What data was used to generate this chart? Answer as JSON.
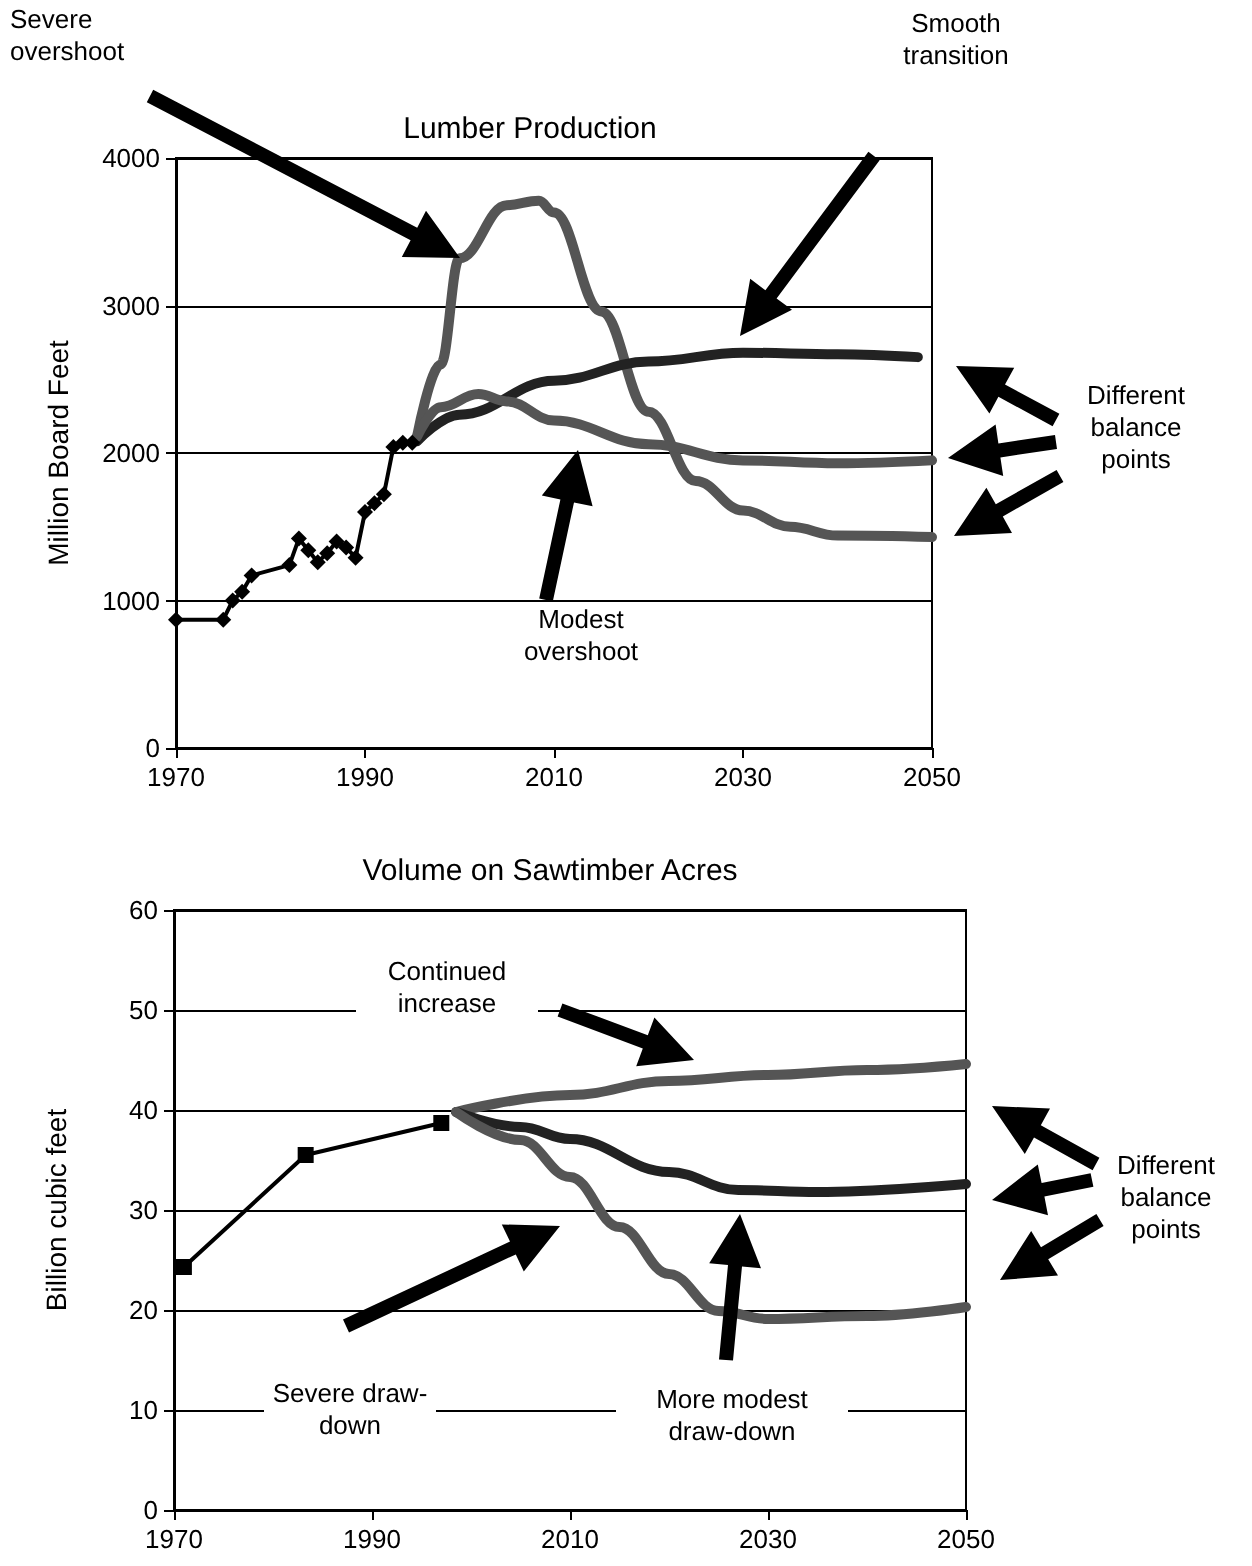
{
  "chart_data": [
    {
      "type": "line",
      "title": "Lumber Production",
      "ylabel": "Million Board Feet",
      "xlim": [
        1970,
        2050
      ],
      "xticks": [
        1970,
        1990,
        2010,
        2030,
        2050
      ],
      "ylim": [
        0,
        4000
      ],
      "yticks": [
        0,
        1000,
        2000,
        3000,
        4000
      ],
      "grid": "y",
      "line_style": "solid",
      "annotations": [
        "Severe overshoot",
        "Smooth transition",
        "Modest overshoot",
        "Different balance points"
      ],
      "series": [
        {
          "color": "#000000",
          "marker": "diamond",
          "x": [
            1970,
            1975,
            1976,
            1977,
            1978,
            1982,
            1983,
            1984,
            1985,
            1986,
            1987,
            1988,
            1989,
            1990,
            1991,
            1992,
            1993,
            1994,
            1995
          ],
          "values": [
            870,
            870,
            1000,
            1060,
            1170,
            1240,
            1420,
            1340,
            1260,
            1320,
            1400,
            1360,
            1290,
            1600,
            1660,
            1720,
            2040,
            2070,
            2070
          ]
        },
        {
          "color": "#555555",
          "marker": "none",
          "x": [
            1995.5,
            1998,
            2000,
            2005,
            2008.4,
            2010,
            2015,
            2020,
            2025,
            2030,
            2035,
            2040,
            2050
          ],
          "values": [
            2110,
            2600,
            3320,
            3680,
            3710,
            3630,
            2960,
            2280,
            1810,
            1610,
            1500,
            1440,
            1430
          ]
        },
        {
          "color": "#222222",
          "marker": "none",
          "x": [
            1995.5,
            2000,
            2010,
            2020,
            2030,
            2040,
            2048.5
          ],
          "values": [
            2080,
            2260,
            2490,
            2620,
            2680,
            2670,
            2650
          ]
        },
        {
          "color": "#555555",
          "marker": "none",
          "x": [
            1995.5,
            1998,
            2002,
            2005,
            2010,
            2020,
            2030,
            2040,
            2050
          ],
          "values": [
            2110,
            2310,
            2400,
            2350,
            2220,
            2060,
            1950,
            1930,
            1950
          ]
        }
      ]
    },
    {
      "type": "line",
      "title": "Volume on Sawtimber Acres",
      "ylabel": "Billion cubic feet",
      "xlim": [
        1970,
        2050
      ],
      "xticks": [
        1970,
        1990,
        2010,
        2030,
        2050
      ],
      "ylim": [
        0,
        60
      ],
      "yticks": [
        0,
        10,
        20,
        30,
        40,
        50,
        60
      ],
      "grid": "y",
      "line_style": "solid",
      "annotations": [
        "Continued increase",
        "Severe draw-down",
        "More modest draw-down",
        "Different balance points"
      ],
      "series": [
        {
          "color": "#000000",
          "marker": "square",
          "x": [
            1971,
            1983.3,
            1997
          ],
          "values": [
            24.3,
            35.5,
            38.7
          ]
        },
        {
          "color": "#555555",
          "marker": "none",
          "x": [
            1998.5,
            2010,
            2020,
            2030,
            2040,
            2050
          ],
          "values": [
            39.8,
            41.5,
            42.9,
            43.5,
            44.0,
            44.6
          ]
        },
        {
          "color": "#222222",
          "marker": "none",
          "x": [
            1998.5,
            2005,
            2010,
            2020,
            2027,
            2035,
            2050
          ],
          "values": [
            39.8,
            38.3,
            37.1,
            33.8,
            32.0,
            31.8,
            32.6
          ]
        },
        {
          "color": "#555555",
          "marker": "none",
          "x": [
            1998.5,
            2005,
            2010,
            2015,
            2020,
            2025,
            2030,
            2040,
            2050
          ],
          "values": [
            39.8,
            37.0,
            33.3,
            28.3,
            23.6,
            19.9,
            19.1,
            19.4,
            20.3
          ]
        }
      ]
    }
  ]
}
